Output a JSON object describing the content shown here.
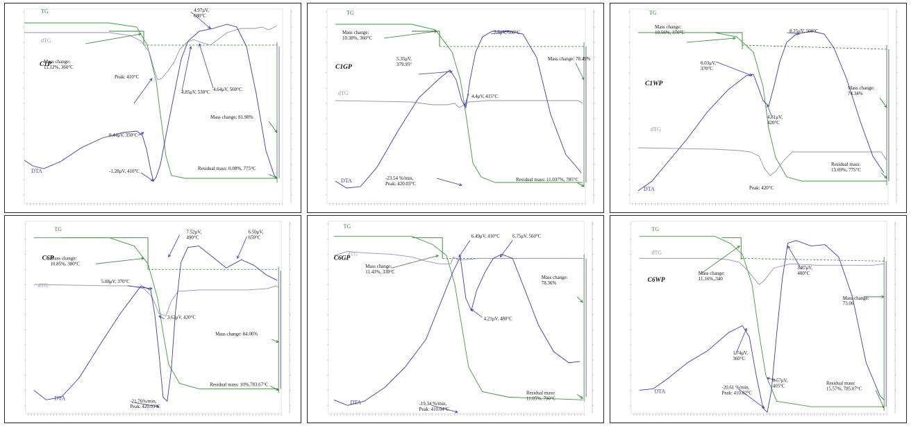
{
  "chart_data": [
    {
      "type": "line",
      "sample": "C1P",
      "series": [
        {
          "name": "TG"
        },
        {
          "name": "dTG"
        },
        {
          "name": "DTA"
        }
      ],
      "annotations": [
        {
          "text": "4.97μV,\n680°C"
        },
        {
          "text": "Mass change:\n11.12%, 360°C"
        },
        {
          "text": "Peak: 410°C"
        },
        {
          "text": "4.85μV, 530°C"
        },
        {
          "text": "4.64μV, 560°C"
        },
        {
          "text": "Mass change: 81.98%"
        },
        {
          "text": "0.44μV, 350°C"
        },
        {
          "text": "-1.28μV, 410°C"
        },
        {
          "text": "Residual mass: 0.08%, 775°C"
        }
      ]
    },
    {
      "type": "line",
      "sample": "C1GP",
      "series": [
        {
          "name": "TG"
        },
        {
          "name": "dTG"
        },
        {
          "name": "DTA"
        }
      ],
      "annotations": [
        {
          "text": "7.5μV, 500°C"
        },
        {
          "text": "Mass change:\n10.38%, 360°C"
        },
        {
          "text": "5.35μV,\n379.95°"
        },
        {
          "text": "4.4μV, 415°C"
        },
        {
          "text": "Mass change: 78.49%"
        },
        {
          "text": "-23.54 %/min,\nPeak: 420.03°C"
        },
        {
          "text": "Residual mass: 11.037%, 785°C"
        }
      ]
    },
    {
      "type": "line",
      "sample": "C1WP",
      "series": [
        {
          "name": "TG"
        },
        {
          "name": "dTG"
        },
        {
          "name": "DTA"
        }
      ],
      "annotations": [
        {
          "text": "8.25μV, 500°C"
        },
        {
          "text": "Mass change:\n10.56%, 370°C"
        },
        {
          "text": "6.03μV,\n370°C"
        },
        {
          "text": "Mass change:\n74.34%"
        },
        {
          "text": "4.81μV,\n420°C"
        },
        {
          "text": "Residual mass:\n13.69%, 775°C"
        },
        {
          "text": "Peak: 420°C"
        }
      ]
    },
    {
      "type": "line",
      "sample": "C6P",
      "series": [
        {
          "name": "TG"
        },
        {
          "name": "dTG"
        },
        {
          "name": "DTA"
        }
      ],
      "annotations": [
        {
          "text": "7.52μV,\n490°C"
        },
        {
          "text": "6.50μV,\n650°C"
        },
        {
          "text": "Mass change:\n10.85%, 380°C"
        },
        {
          "text": "5.08μV, 370°C"
        },
        {
          "text": "3.62μV, 420°C"
        },
        {
          "text": "Mass change: 84.06%"
        },
        {
          "text": "Residual mass: 10%,783.67°C"
        },
        {
          "text": "-21.76%/min,\nPeak: 420.03°C"
        }
      ]
    },
    {
      "type": "line",
      "sample": "C6GP",
      "series": [
        {
          "name": "TG"
        },
        {
          "name": "dTG"
        },
        {
          "name": "DTA"
        }
      ],
      "annotations": [
        {
          "text": "6.49μV, 410°C"
        },
        {
          "text": "6.75μV, 560°C"
        },
        {
          "text": "Mass change:\n11.43%, 330°C"
        },
        {
          "text": "Mass change:\n78.36%"
        },
        {
          "text": "4.21μV, 480°C"
        },
        {
          "text": "-19.34 %/min,\nPeak: 410.04°C"
        },
        {
          "text": "Residual mass:\n11.05%, 790°C"
        }
      ]
    },
    {
      "type": "line",
      "sample": "C6WP",
      "series": [
        {
          "name": "TG"
        },
        {
          "name": "dTG"
        },
        {
          "name": "DTA"
        }
      ],
      "annotations": [
        {
          "text": "Mass change:\n11.16%,,340"
        },
        {
          "text": "3.87μV,\n480°C"
        },
        {
          "text": "Mass change:\n73.06"
        },
        {
          "text": "1.74μV,\n360°C"
        },
        {
          "text": "0.57μV,\n405°C"
        },
        {
          "text": "-20.61 %/min,\nPeak: 410.02°C"
        },
        {
          "text": "Residual mass:\n15.57%, 785.07°C"
        }
      ]
    }
  ]
}
